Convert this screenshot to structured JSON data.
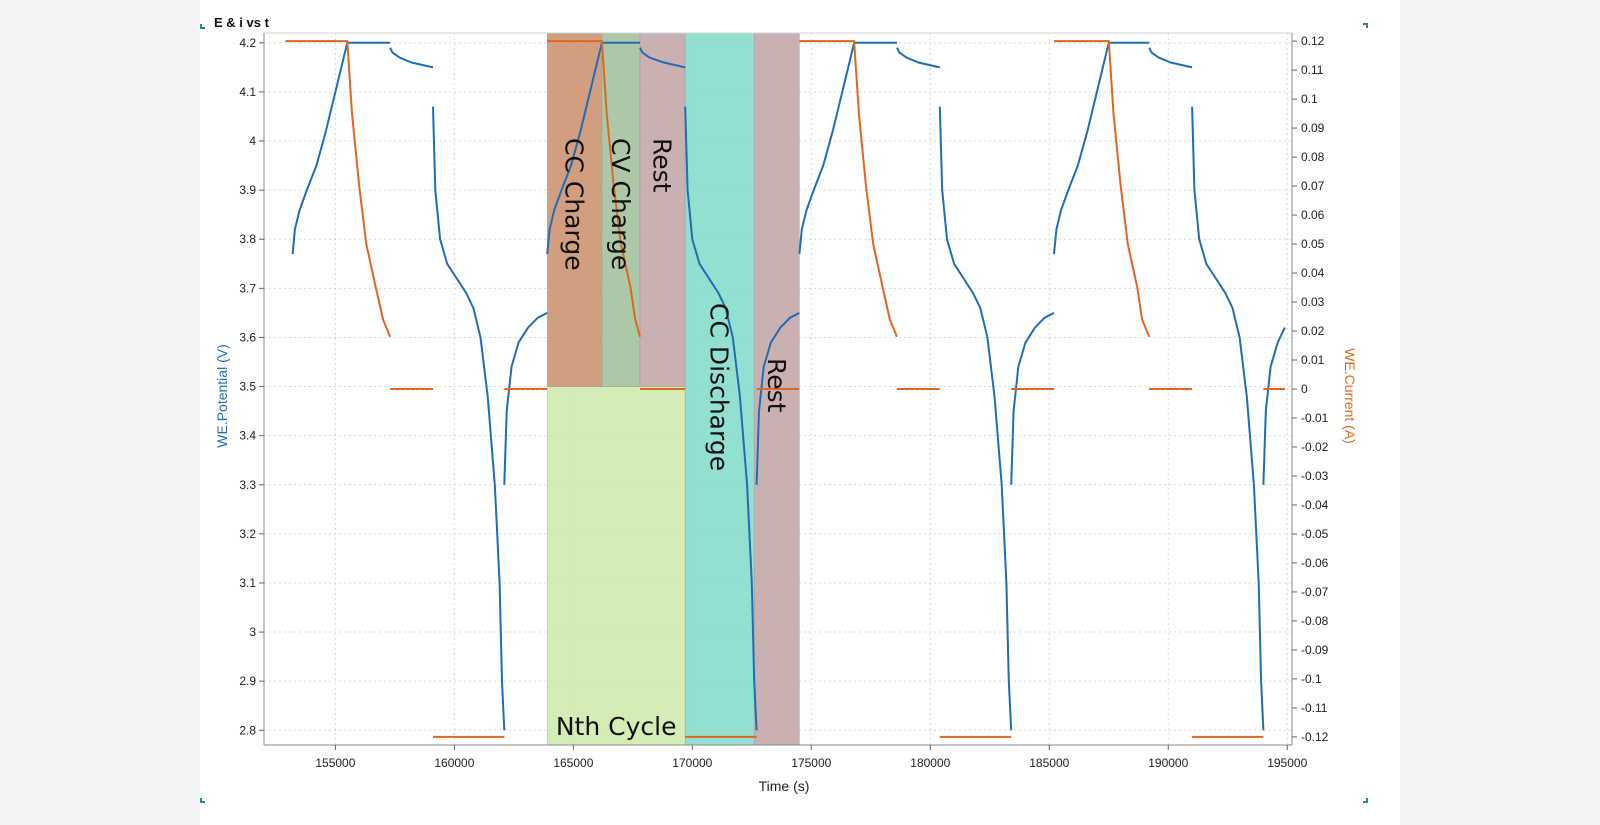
{
  "chart_data": {
    "type": "line",
    "title": "E & i vs t",
    "xlabel": "Time (s)",
    "ylabel": "WE.Potential (V)",
    "y2label": "WE.Current (A)",
    "xlim": [
      152000,
      195200
    ],
    "ylim": [
      2.77,
      4.22
    ],
    "y2lim": [
      -0.1228,
      0.1228
    ],
    "xticks": [
      155000,
      160000,
      165000,
      170000,
      175000,
      180000,
      185000,
      190000,
      195000
    ],
    "yticks": [
      2.8,
      2.9,
      3,
      3.1,
      3.2,
      3.3,
      3.4,
      3.5,
      3.6,
      3.7,
      3.8,
      3.9,
      4,
      4.1,
      4.2
    ],
    "y2ticks": [
      -0.12,
      -0.11,
      -0.1,
      -0.09,
      -0.08,
      -0.07,
      -0.06,
      -0.05,
      -0.04,
      -0.03,
      -0.02,
      -0.01,
      0,
      0.01,
      0.02,
      0.03,
      0.04,
      0.05,
      0.06,
      0.07,
      0.08,
      0.09,
      0.1,
      0.11,
      0.12
    ],
    "grid": true,
    "colors": {
      "potential": "#1f6eb5",
      "current": "#e0661e"
    },
    "series": [
      {
        "name": "WE.Potential (V)",
        "axis": "left",
        "segments": [
          [
            [
              153200,
              3.77
            ],
            [
              153300,
              3.82
            ],
            [
              153500,
              3.86
            ],
            [
              153800,
              3.9
            ],
            [
              154200,
              3.95
            ],
            [
              154600,
              4.02
            ],
            [
              155000,
              4.1
            ],
            [
              155300,
              4.16
            ],
            [
              155500,
              4.2
            ],
            [
              157300,
              4.2
            ]
          ],
          [
            [
              157300,
              4.19
            ],
            [
              157400,
              4.18
            ],
            [
              157700,
              4.17
            ],
            [
              158200,
              4.16
            ],
            [
              159100,
              4.15
            ]
          ],
          [
            [
              159100,
              4.07
            ],
            [
              159200,
              3.9
            ],
            [
              159400,
              3.8
            ],
            [
              159700,
              3.75
            ],
            [
              160100,
              3.72
            ],
            [
              160500,
              3.69
            ],
            [
              160800,
              3.66
            ],
            [
              161100,
              3.6
            ],
            [
              161400,
              3.48
            ],
            [
              161700,
              3.3
            ],
            [
              161900,
              3.1
            ],
            [
              162000,
              2.9
            ],
            [
              162100,
              2.8
            ]
          ],
          [
            [
              162100,
              3.3
            ],
            [
              162200,
              3.45
            ],
            [
              162400,
              3.54
            ],
            [
              162700,
              3.59
            ],
            [
              163100,
              3.62
            ],
            [
              163500,
              3.64
            ],
            [
              163900,
              3.65
            ]
          ],
          [
            [
              163900,
              3.77
            ],
            [
              164000,
              3.82
            ],
            [
              164200,
              3.86
            ],
            [
              164500,
              3.9
            ],
            [
              164900,
              3.95
            ],
            [
              165300,
              4.02
            ],
            [
              165700,
              4.1
            ],
            [
              166000,
              4.16
            ],
            [
              166200,
              4.2
            ],
            [
              167800,
              4.2
            ]
          ],
          [
            [
              167800,
              4.19
            ],
            [
              167900,
              4.18
            ],
            [
              168200,
              4.17
            ],
            [
              168800,
              4.16
            ],
            [
              169700,
              4.15
            ]
          ],
          [
            [
              169700,
              4.07
            ],
            [
              169800,
              3.9
            ],
            [
              170000,
              3.8
            ],
            [
              170300,
              3.75
            ],
            [
              170700,
              3.72
            ],
            [
              171100,
              3.69
            ],
            [
              171400,
              3.66
            ],
            [
              171700,
              3.6
            ],
            [
              172000,
              3.48
            ],
            [
              172300,
              3.3
            ],
            [
              172500,
              3.1
            ],
            [
              172600,
              2.9
            ],
            [
              172700,
              2.8
            ]
          ],
          [
            [
              172700,
              3.3
            ],
            [
              172800,
              3.45
            ],
            [
              173000,
              3.54
            ],
            [
              173300,
              3.59
            ],
            [
              173700,
              3.62
            ],
            [
              174100,
              3.64
            ],
            [
              174500,
              3.65
            ]
          ],
          [
            [
              174500,
              3.77
            ],
            [
              174600,
              3.82
            ],
            [
              174800,
              3.86
            ],
            [
              175100,
              3.9
            ],
            [
              175500,
              3.95
            ],
            [
              175900,
              4.02
            ],
            [
              176300,
              4.1
            ],
            [
              176600,
              4.16
            ],
            [
              176800,
              4.2
            ],
            [
              178600,
              4.2
            ]
          ],
          [
            [
              178600,
              4.19
            ],
            [
              178700,
              4.18
            ],
            [
              179000,
              4.17
            ],
            [
              179500,
              4.16
            ],
            [
              180400,
              4.15
            ]
          ],
          [
            [
              180400,
              4.07
            ],
            [
              180500,
              3.9
            ],
            [
              180700,
              3.8
            ],
            [
              181000,
              3.75
            ],
            [
              181400,
              3.72
            ],
            [
              181800,
              3.69
            ],
            [
              182100,
              3.66
            ],
            [
              182400,
              3.6
            ],
            [
              182700,
              3.48
            ],
            [
              183000,
              3.3
            ],
            [
              183200,
              3.1
            ],
            [
              183300,
              2.9
            ],
            [
              183400,
              2.8
            ]
          ],
          [
            [
              183400,
              3.3
            ],
            [
              183500,
              3.45
            ],
            [
              183700,
              3.54
            ],
            [
              184000,
              3.59
            ],
            [
              184400,
              3.62
            ],
            [
              184800,
              3.64
            ],
            [
              185200,
              3.65
            ]
          ],
          [
            [
              185200,
              3.77
            ],
            [
              185300,
              3.82
            ],
            [
              185500,
              3.86
            ],
            [
              185800,
              3.9
            ],
            [
              186200,
              3.95
            ],
            [
              186600,
              4.02
            ],
            [
              187000,
              4.1
            ],
            [
              187300,
              4.16
            ],
            [
              187500,
              4.2
            ],
            [
              189200,
              4.2
            ]
          ],
          [
            [
              189200,
              4.19
            ],
            [
              189300,
              4.18
            ],
            [
              189600,
              4.17
            ],
            [
              190100,
              4.16
            ],
            [
              191000,
              4.15
            ]
          ],
          [
            [
              191000,
              4.07
            ],
            [
              191100,
              3.9
            ],
            [
              191300,
              3.8
            ],
            [
              191600,
              3.75
            ],
            [
              192000,
              3.72
            ],
            [
              192400,
              3.69
            ],
            [
              192700,
              3.66
            ],
            [
              193000,
              3.6
            ],
            [
              193300,
              3.48
            ],
            [
              193600,
              3.3
            ],
            [
              193800,
              3.1
            ],
            [
              193900,
              2.9
            ],
            [
              194000,
              2.8
            ]
          ],
          [
            [
              194000,
              3.3
            ],
            [
              194100,
              3.45
            ],
            [
              194300,
              3.54
            ],
            [
              194600,
              3.59
            ],
            [
              194900,
              3.62
            ]
          ]
        ]
      },
      {
        "name": "WE.Current (A)",
        "axis": "right",
        "segments": [
          [
            [
              152900,
              0.12
            ],
            [
              155500,
              0.12
            ],
            [
              155700,
              0.095
            ],
            [
              156000,
              0.07
            ],
            [
              156300,
              0.05
            ],
            [
              156700,
              0.035
            ],
            [
              157000,
              0.024
            ],
            [
              157300,
              0.018
            ]
          ],
          [
            [
              157300,
              0
            ],
            [
              159100,
              0
            ]
          ],
          [
            [
              159100,
              -0.12
            ],
            [
              162100,
              -0.12
            ]
          ],
          [
            [
              162100,
              0
            ],
            [
              163900,
              0
            ]
          ],
          [
            [
              163900,
              0.12
            ],
            [
              166200,
              0.12
            ],
            [
              166400,
              0.095
            ],
            [
              166700,
              0.07
            ],
            [
              167000,
              0.05
            ],
            [
              167400,
              0.035
            ],
            [
              167600,
              0.024
            ],
            [
              167800,
              0.018
            ]
          ],
          [
            [
              167800,
              0
            ],
            [
              169700,
              0
            ]
          ],
          [
            [
              169700,
              -0.12
            ],
            [
              172700,
              -0.12
            ]
          ],
          [
            [
              172700,
              0
            ],
            [
              174500,
              0
            ]
          ],
          [
            [
              174500,
              0.12
            ],
            [
              176800,
              0.12
            ],
            [
              177000,
              0.095
            ],
            [
              177300,
              0.07
            ],
            [
              177600,
              0.05
            ],
            [
              178000,
              0.035
            ],
            [
              178300,
              0.024
            ],
            [
              178600,
              0.018
            ]
          ],
          [
            [
              178600,
              0
            ],
            [
              180400,
              0
            ]
          ],
          [
            [
              180400,
              -0.12
            ],
            [
              183400,
              -0.12
            ]
          ],
          [
            [
              183400,
              0
            ],
            [
              185200,
              0
            ]
          ],
          [
            [
              185200,
              0.12
            ],
            [
              187500,
              0.12
            ],
            [
              187700,
              0.095
            ],
            [
              188000,
              0.07
            ],
            [
              188300,
              0.05
            ],
            [
              188700,
              0.035
            ],
            [
              188900,
              0.024
            ],
            [
              189200,
              0.018
            ]
          ],
          [
            [
              189200,
              0
            ],
            [
              191000,
              0
            ]
          ],
          [
            [
              191000,
              -0.12
            ],
            [
              194000,
              -0.12
            ]
          ],
          [
            [
              194000,
              0
            ],
            [
              194900,
              0
            ]
          ]
        ]
      }
    ],
    "annotations": [
      {
        "label": "Nth Cycle",
        "x0": 163900,
        "x1": 169700,
        "y0": 2.77,
        "y1": 3.5,
        "color": "#cde9a8"
      },
      {
        "label": "CC Charge",
        "x0": 163900,
        "x1": 166200,
        "y0": 3.5,
        "y1": 4.22,
        "color": "#c98e69"
      },
      {
        "label": "CV Charge",
        "x0": 166200,
        "x1": 167800,
        "y0": 3.5,
        "y1": 4.22,
        "color": "#9fbd9a"
      },
      {
        "label": "Rest",
        "x0": 167800,
        "x1": 169700,
        "y0": 3.5,
        "y1": 4.22,
        "color": "#bfa3a5"
      },
      {
        "label": "CC Discharge",
        "x0": 169700,
        "x1": 172600,
        "y0": 2.77,
        "y1": 4.22,
        "color": "#7fdac9"
      },
      {
        "label": "Rest",
        "x0": 172600,
        "x1": 174500,
        "y0": 2.77,
        "y1": 4.22,
        "color": "#bfa3a5"
      }
    ]
  }
}
